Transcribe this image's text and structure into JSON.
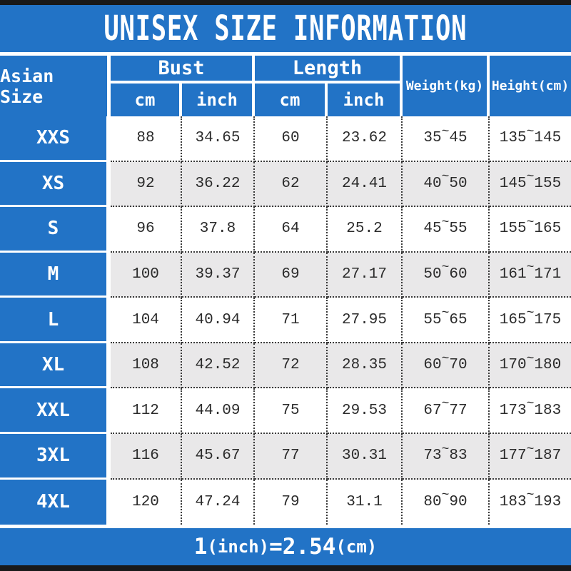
{
  "title": "UNISEX SIZE INFORMATION",
  "colors": {
    "blue": "#2273c6",
    "row_alt": "#e9e8e9",
    "bar_black": "#191919",
    "cell_text": "#2b2b2b"
  },
  "header": {
    "size_col": "Asian Size",
    "bust_label": "Bust",
    "length_label": "Length",
    "bust_cm": "cm",
    "bust_inch": "inch",
    "length_cm": "cm",
    "length_inch": "inch",
    "weight": "Weight(kg)",
    "height": "Height(cm)"
  },
  "tilde": "~",
  "rows": [
    {
      "size": "XXS",
      "bust_cm": "88",
      "bust_inch": "34.65",
      "length_cm": "60",
      "length_inch": "23.62",
      "weight_min": "35",
      "weight_max": "45",
      "height_min": "135",
      "height_max": "145"
    },
    {
      "size": "XS",
      "bust_cm": "92",
      "bust_inch": "36.22",
      "length_cm": "62",
      "length_inch": "24.41",
      "weight_min": "40",
      "weight_max": "50",
      "height_min": "145",
      "height_max": "155"
    },
    {
      "size": "S",
      "bust_cm": "96",
      "bust_inch": "37.8",
      "length_cm": "64",
      "length_inch": "25.2",
      "weight_min": "45",
      "weight_max": "55",
      "height_min": "155",
      "height_max": "165"
    },
    {
      "size": "M",
      "bust_cm": "100",
      "bust_inch": "39.37",
      "length_cm": "69",
      "length_inch": "27.17",
      "weight_min": "50",
      "weight_max": "60",
      "height_min": "161",
      "height_max": "171"
    },
    {
      "size": "L",
      "bust_cm": "104",
      "bust_inch": "40.94",
      "length_cm": "71",
      "length_inch": "27.95",
      "weight_min": "55",
      "weight_max": "65",
      "height_min": "165",
      "height_max": "175"
    },
    {
      "size": "XL",
      "bust_cm": "108",
      "bust_inch": "42.52",
      "length_cm": "72",
      "length_inch": "28.35",
      "weight_min": "60",
      "weight_max": "70",
      "height_min": "170",
      "height_max": "180"
    },
    {
      "size": "XXL",
      "bust_cm": "112",
      "bust_inch": "44.09",
      "length_cm": "75",
      "length_inch": "29.53",
      "weight_min": "67",
      "weight_max": "77",
      "height_min": "173",
      "height_max": "183"
    },
    {
      "size": "3XL",
      "bust_cm": "116",
      "bust_inch": "45.67",
      "length_cm": "77",
      "length_inch": "30.31",
      "weight_min": "73",
      "weight_max": "83",
      "height_min": "177",
      "height_max": "187"
    },
    {
      "size": "4XL",
      "bust_cm": "120",
      "bust_inch": "47.24",
      "length_cm": "79",
      "length_inch": "31.1",
      "weight_min": "80",
      "weight_max": "90",
      "height_min": "183",
      "height_max": "193"
    }
  ],
  "footer": {
    "p1": "1",
    "p2": "(inch)",
    "p3": "=",
    "p4": "2.54",
    "p5": "(cm)"
  },
  "chart_data": {
    "type": "table",
    "title": "UNISEX SIZE INFORMATION",
    "columns": [
      "Asian Size",
      "Bust cm",
      "Bust inch",
      "Length cm",
      "Length inch",
      "Weight(kg)",
      "Height(cm)"
    ],
    "rows": [
      [
        "XXS",
        "88",
        "34.65",
        "60",
        "23.62",
        "35~45",
        "135~145"
      ],
      [
        "XS",
        "92",
        "36.22",
        "62",
        "24.41",
        "40~50",
        "145~155"
      ],
      [
        "S",
        "96",
        "37.8",
        "64",
        "25.2",
        "45~55",
        "155~165"
      ],
      [
        "M",
        "100",
        "39.37",
        "69",
        "27.17",
        "50~60",
        "161~171"
      ],
      [
        "L",
        "104",
        "40.94",
        "71",
        "27.95",
        "55~65",
        "165~175"
      ],
      [
        "XL",
        "108",
        "42.52",
        "72",
        "28.35",
        "60~70",
        "170~180"
      ],
      [
        "XXL",
        "112",
        "44.09",
        "75",
        "29.53",
        "67~77",
        "173~183"
      ],
      [
        "3XL",
        "116",
        "45.67",
        "77",
        "30.31",
        "73~83",
        "177~187"
      ],
      [
        "4XL",
        "120",
        "47.24",
        "79",
        "31.1",
        "80~90",
        "183~193"
      ]
    ],
    "note": "1(inch)=2.54(cm)"
  }
}
